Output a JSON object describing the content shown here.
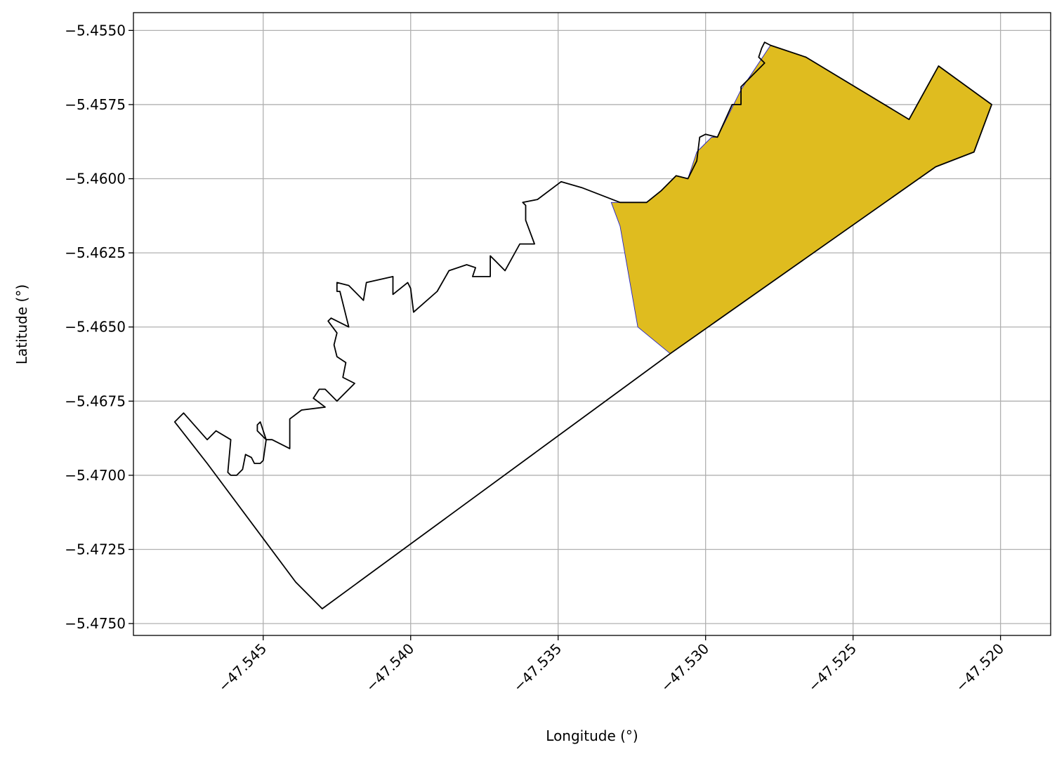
{
  "chart_data": {
    "type": "map",
    "xlabel": "Longitude (°)",
    "ylabel": "Latitude (°)",
    "xlim": [
      -47.5494,
      -47.5183
    ],
    "ylim": [
      -5.4754,
      -5.4544
    ],
    "xticks": [
      -47.545,
      -47.54,
      -47.535,
      -47.53,
      -47.525,
      -47.52
    ],
    "xtick_labels": [
      "−47.545",
      "−47.540",
      "−47.535",
      "−47.530",
      "−47.525",
      "−47.520"
    ],
    "yticks": [
      -5.455,
      -5.4575,
      -5.46,
      -5.4625,
      -5.465,
      -5.4675,
      -5.47,
      -5.4725,
      -5.475
    ],
    "ytick_labels": [
      "−5.4550",
      "−5.4575",
      "−5.4600",
      "−5.4625",
      "−5.4650",
      "−5.4675",
      "−5.4700",
      "−5.4725",
      "−5.4750"
    ],
    "grid": true,
    "colors": {
      "filled_region": "#dfbc1f",
      "filled_edge": "#2222cc",
      "outline": "#000000",
      "grid": "#b0b0b0"
    },
    "outline_polygon": [
      [
        -47.548,
        -5.4682
      ],
      [
        -47.5477,
        -5.4679
      ],
      [
        -47.5469,
        -5.4688
      ],
      [
        -47.5466,
        -5.4685
      ],
      [
        -47.5461,
        -5.4688
      ],
      [
        -47.5462,
        -5.4699
      ],
      [
        -47.5461,
        -5.47
      ],
      [
        -47.5459,
        -5.47
      ],
      [
        -47.5457,
        -5.4698
      ],
      [
        -47.5456,
        -5.4693
      ],
      [
        -47.5454,
        -5.4694
      ],
      [
        -47.5453,
        -5.4696
      ],
      [
        -47.5451,
        -5.4696
      ],
      [
        -47.545,
        -5.4695
      ],
      [
        -47.5449,
        -5.4688
      ],
      [
        -47.5452,
        -5.4685
      ],
      [
        -47.5452,
        -5.4683
      ],
      [
        -47.5451,
        -5.4682
      ],
      [
        -47.5449,
        -5.4688
      ],
      [
        -47.5447,
        -5.4688
      ],
      [
        -47.5441,
        -5.4691
      ],
      [
        -47.5441,
        -5.4681
      ],
      [
        -47.5437,
        -5.4678
      ],
      [
        -47.5429,
        -5.4677
      ],
      [
        -47.5433,
        -5.4674
      ],
      [
        -47.5431,
        -5.4671
      ],
      [
        -47.5429,
        -5.4671
      ],
      [
        -47.5425,
        -5.4675
      ],
      [
        -47.5419,
        -5.4669
      ],
      [
        -47.5423,
        -5.4667
      ],
      [
        -47.5422,
        -5.4662
      ],
      [
        -47.5425,
        -5.466
      ],
      [
        -47.5426,
        -5.4656
      ],
      [
        -47.5425,
        -5.4652
      ],
      [
        -47.5428,
        -5.4648
      ],
      [
        -47.5427,
        -5.4647
      ],
      [
        -47.5421,
        -5.465
      ],
      [
        -47.5424,
        -5.4638
      ],
      [
        -47.5425,
        -5.4638
      ],
      [
        -47.5425,
        -5.4635
      ],
      [
        -47.5421,
        -5.4636
      ],
      [
        -47.5416,
        -5.4641
      ],
      [
        -47.5415,
        -5.4635
      ],
      [
        -47.5406,
        -5.4633
      ],
      [
        -47.5406,
        -5.4639
      ],
      [
        -47.5401,
        -5.4635
      ],
      [
        -47.54,
        -5.4637
      ],
      [
        -47.5399,
        -5.4645
      ],
      [
        -47.5391,
        -5.4638
      ],
      [
        -47.5387,
        -5.4631
      ],
      [
        -47.5381,
        -5.4629
      ],
      [
        -47.5378,
        -5.463
      ],
      [
        -47.5379,
        -5.4633
      ],
      [
        -47.5373,
        -5.4633
      ],
      [
        -47.5373,
        -5.4626
      ],
      [
        -47.5371,
        -5.4628
      ],
      [
        -47.5368,
        -5.4631
      ],
      [
        -47.5363,
        -5.4622
      ],
      [
        -47.5358,
        -5.4622
      ],
      [
        -47.5361,
        -5.4614
      ],
      [
        -47.5361,
        -5.4609
      ],
      [
        -47.5362,
        -5.4608
      ],
      [
        -47.5357,
        -5.4607
      ],
      [
        -47.5349,
        -5.4601
      ],
      [
        -47.5342,
        -5.4603
      ],
      [
        -47.5329,
        -5.4608
      ],
      [
        -47.532,
        -5.4608
      ],
      [
        -47.5315,
        -5.4604
      ],
      [
        -47.5315,
        -5.4604
      ],
      [
        -47.531,
        -5.4599
      ],
      [
        -47.5306,
        -5.46
      ],
      [
        -47.5303,
        -5.4594
      ],
      [
        -47.5302,
        -5.4586
      ],
      [
        -47.53,
        -5.4585
      ],
      [
        -47.5296,
        -5.4586
      ],
      [
        -47.5291,
        -5.4575
      ],
      [
        -47.5288,
        -5.4575
      ],
      [
        -47.5288,
        -5.4569
      ],
      [
        -47.528,
        -5.4561
      ],
      [
        -47.5282,
        -5.4559
      ],
      [
        -47.5281,
        -5.4556
      ],
      [
        -47.528,
        -5.4554
      ],
      [
        -47.5278,
        -5.4555
      ],
      [
        -47.5266,
        -5.4559
      ],
      [
        -47.5231,
        -5.458
      ],
      [
        -47.5221,
        -5.4562
      ],
      [
        -47.5203,
        -5.4575
      ],
      [
        -47.5209,
        -5.4591
      ],
      [
        -47.5222,
        -5.4596
      ],
      [
        -47.5312,
        -5.4659
      ],
      [
        -47.543,
        -5.4745
      ],
      [
        -47.5439,
        -5.4736
      ],
      [
        -47.5469,
        -5.4696
      ],
      [
        -47.548,
        -5.4682
      ]
    ],
    "filled_polygon": [
      [
        -47.5278,
        -5.4555
      ],
      [
        -47.5266,
        -5.4559
      ],
      [
        -47.5231,
        -5.458
      ],
      [
        -47.5221,
        -5.4562
      ],
      [
        -47.5203,
        -5.4575
      ],
      [
        -47.5209,
        -5.4591
      ],
      [
        -47.5222,
        -5.4596
      ],
      [
        -47.5312,
        -5.4659
      ],
      [
        -47.5323,
        -5.465
      ],
      [
        -47.5329,
        -5.4616
      ],
      [
        -47.5332,
        -5.4608
      ],
      [
        -47.532,
        -5.4608
      ],
      [
        -47.5315,
        -5.4604
      ],
      [
        -47.531,
        -5.4599
      ],
      [
        -47.5306,
        -5.46
      ],
      [
        -47.5303,
        -5.4591
      ],
      [
        -47.5298,
        -5.4586
      ],
      [
        -47.5296,
        -5.4586
      ],
      [
        -47.5288,
        -5.457
      ],
      [
        -47.5278,
        -5.4555
      ]
    ]
  }
}
